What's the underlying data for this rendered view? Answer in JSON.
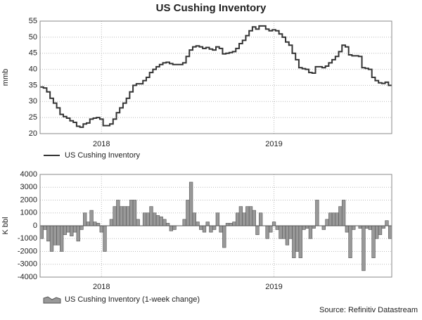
{
  "source": "Source: Refinitiv Datastream",
  "chart_data": [
    {
      "type": "line",
      "title": "US Cushing Inventory",
      "ylabel": "mmb",
      "categories": [
        null,
        null,
        null,
        null,
        null,
        null,
        null,
        null,
        null,
        null,
        null,
        null,
        null,
        null,
        null,
        null,
        null,
        null,
        "2018",
        null,
        null,
        null,
        null,
        null,
        null,
        null,
        null,
        null,
        null,
        null,
        null,
        null,
        null,
        null,
        null,
        null,
        null,
        null,
        null,
        null,
        null,
        null,
        null,
        null,
        null,
        null,
        null,
        null,
        null,
        null,
        null,
        null,
        null,
        null,
        null,
        null,
        null,
        null,
        null,
        null,
        null,
        null,
        null,
        null,
        null,
        null,
        null,
        null,
        null,
        null,
        "2019",
        null,
        null,
        null,
        null,
        null,
        null,
        null,
        null,
        null,
        null,
        null,
        null,
        null,
        null,
        null,
        null,
        null,
        null,
        null,
        null,
        null,
        null,
        null,
        null,
        null,
        null,
        null,
        null,
        null,
        null,
        null,
        null,
        null,
        null,
        null
      ],
      "series": [
        {
          "name": "US Cushing Inventory",
          "color": "#333333",
          "values": [
            34.5,
            34.2,
            33,
            31,
            29.5,
            28,
            26,
            25.3,
            24.8,
            24,
            23.5,
            22.3,
            22,
            23,
            23.3,
            24.5,
            24.8,
            25,
            24.5,
            22.5,
            22.5,
            23,
            24.5,
            26.5,
            28,
            29.5,
            31,
            33,
            35,
            35.5,
            35.5,
            36.5,
            37.5,
            39,
            40,
            40.8,
            41.5,
            42,
            42.2,
            41.8,
            41.5,
            41.5,
            41.5,
            42,
            44,
            46,
            47,
            47.3,
            47,
            46.5,
            46.8,
            46.3,
            46,
            47,
            46.5,
            44.8,
            45,
            45.2,
            45.5,
            46.5,
            48,
            49,
            50.5,
            52,
            53.2,
            52.5,
            53.5,
            53.5,
            52.5,
            52,
            52.3,
            52,
            51,
            50,
            48.5,
            47.5,
            45,
            43,
            40.5,
            40.2,
            40,
            39,
            38.8,
            40.8,
            40.8,
            40.5,
            41,
            42,
            43,
            44,
            45.5,
            47.5,
            47,
            44.5,
            44.2,
            44.2,
            44,
            40.5,
            40.3,
            40,
            37.5,
            36.5,
            35.8,
            35.6,
            36,
            35
          ]
        }
      ],
      "ylim": [
        20,
        55
      ],
      "yticks": [
        20,
        25,
        30,
        35,
        40,
        45,
        50,
        55
      ],
      "grid": true
    },
    {
      "type": "bar",
      "ylabel": "K bbl",
      "categories": [
        null,
        null,
        null,
        null,
        null,
        null,
        null,
        null,
        null,
        null,
        null,
        null,
        null,
        null,
        null,
        null,
        null,
        null,
        "2018",
        null,
        null,
        null,
        null,
        null,
        null,
        null,
        null,
        null,
        null,
        null,
        null,
        null,
        null,
        null,
        null,
        null,
        null,
        null,
        null,
        null,
        null,
        null,
        null,
        null,
        null,
        null,
        null,
        null,
        null,
        null,
        null,
        null,
        null,
        null,
        null,
        null,
        null,
        null,
        null,
        null,
        null,
        null,
        null,
        null,
        null,
        null,
        null,
        null,
        null,
        null,
        "2019",
        null,
        null,
        null,
        null,
        null,
        null,
        null,
        null,
        null,
        null,
        null,
        null,
        null,
        null,
        null,
        null,
        null,
        null,
        null,
        null,
        null,
        null,
        null,
        null,
        null,
        null,
        null,
        null,
        null,
        null,
        null,
        null,
        null,
        null,
        null
      ],
      "series": [
        {
          "name": "US Cushing Inventory (1-week change)",
          "color": "#999999",
          "values": [
            -1000,
            -300,
            -1200,
            -2000,
            -1500,
            -1500,
            -2000,
            -700,
            -500,
            -800,
            -500,
            -1200,
            -300,
            1000,
            300,
            1200,
            300,
            200,
            -500,
            -2000,
            0,
            500,
            1500,
            2000,
            1500,
            1500,
            1500,
            2000,
            2000,
            500,
            0,
            1000,
            1000,
            1500,
            1000,
            800,
            700,
            500,
            200,
            -400,
            -300,
            0,
            0,
            500,
            2000,
            3400,
            1000,
            300,
            -300,
            -500,
            300,
            -500,
            -300,
            1000,
            -500,
            -1700,
            200,
            200,
            300,
            1000,
            1500,
            1000,
            1500,
            1500,
            1200,
            -700,
            1000,
            0,
            -1000,
            -500,
            300,
            -300,
            -1000,
            -1000,
            -1500,
            -1000,
            -2500,
            -2000,
            -2500,
            -300,
            -200,
            -1000,
            -200,
            2000,
            0,
            -300,
            500,
            1000,
            1000,
            1000,
            1500,
            2000,
            -500,
            -2500,
            -300,
            0,
            -200,
            -3500,
            -200,
            -300,
            -2500,
            -1000,
            -700,
            -200,
            400,
            -1000
          ]
        }
      ],
      "ylim": [
        -4000,
        4000
      ],
      "yticks": [
        -4000,
        -3000,
        -2000,
        -1000,
        0,
        1000,
        2000,
        3000,
        4000
      ],
      "grid": true
    }
  ]
}
